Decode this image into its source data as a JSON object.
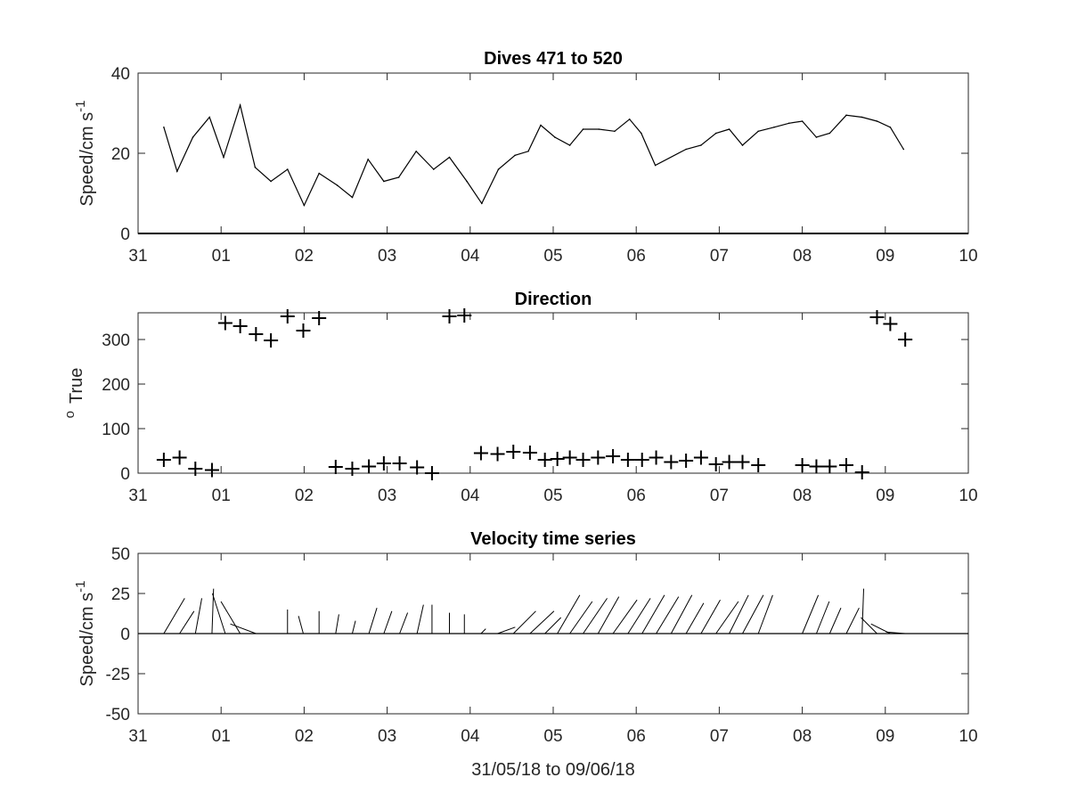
{
  "xlabel": "31/05/18 to 09/06/18",
  "chart_data": [
    {
      "type": "line",
      "title": "Dives 471 to 520",
      "ylabel_main": "Speed/cm s",
      "ylabel_exp": "-1",
      "xlim": [
        0,
        10
      ],
      "ylim": [
        0,
        40
      ],
      "xticks": [
        0,
        1,
        2,
        3,
        4,
        5,
        6,
        7,
        8,
        9,
        10
      ],
      "xtick_labels": [
        "31",
        "01",
        "02",
        "03",
        "04",
        "05",
        "06",
        "07",
        "08",
        "09",
        "10"
      ],
      "yticks": [
        0,
        20,
        40
      ],
      "ytick_labels": [
        "0",
        "20",
        "40"
      ],
      "color": "#000000",
      "x": [
        0.31,
        0.47,
        0.66,
        0.86,
        1.03,
        1.23,
        1.41,
        1.6,
        1.8,
        2.0,
        2.18,
        2.4,
        2.58,
        2.77,
        2.96,
        3.14,
        3.35,
        3.56,
        3.75,
        3.96,
        4.14,
        4.34,
        4.54,
        4.7,
        4.85,
        5.02,
        5.2,
        5.36,
        5.55,
        5.74,
        5.92,
        6.06,
        6.23,
        6.6,
        6.78,
        6.96,
        7.12,
        7.28,
        7.47,
        7.66,
        7.84,
        8.0,
        8.17,
        8.33,
        8.53,
        8.72,
        8.9,
        9.06,
        9.22
      ],
      "y": [
        26.5,
        15.5,
        24,
        29,
        19,
        32,
        16.5,
        13,
        16,
        7,
        15,
        12,
        9,
        18.5,
        13,
        14,
        20.5,
        16,
        19,
        13,
        7.5,
        16,
        19.5,
        20.5,
        27,
        24,
        22,
        26,
        26,
        25.5,
        28.5,
        25,
        17,
        21,
        22,
        25,
        26,
        22,
        25.5,
        26.5,
        27.5,
        28,
        24,
        25,
        29.5,
        29,
        28,
        26.5,
        21
      ]
    },
    {
      "type": "scatter",
      "title": "Direction",
      "ylabel_main": "True",
      "ylabel_sup": "o",
      "xlim": [
        0,
        10
      ],
      "ylim": [
        0,
        360
      ],
      "xticks": [
        0,
        1,
        2,
        3,
        4,
        5,
        6,
        7,
        8,
        9,
        10
      ],
      "xtick_labels": [
        "31",
        "01",
        "02",
        "03",
        "04",
        "05",
        "06",
        "07",
        "08",
        "09",
        "10"
      ],
      "yticks": [
        0,
        100,
        200,
        300
      ],
      "ytick_labels": [
        "0",
        "100",
        "200",
        "300"
      ],
      "marker": "+",
      "color": "#000000",
      "x": [
        0.31,
        0.5,
        0.69,
        0.89,
        1.05,
        1.23,
        1.42,
        1.6,
        1.8,
        1.99,
        2.18,
        2.38,
        2.58,
        2.78,
        2.96,
        3.15,
        3.36,
        3.54,
        3.75,
        3.93,
        4.13,
        4.33,
        4.52,
        4.72,
        4.9,
        5.05,
        5.2,
        5.36,
        5.54,
        5.72,
        5.9,
        6.07,
        6.24,
        6.42,
        6.6,
        6.78,
        6.96,
        7.12,
        7.28,
        7.47,
        8.0,
        8.17,
        8.33,
        8.53,
        8.72,
        8.9,
        9.06,
        9.24
      ],
      "y": [
        30,
        35,
        10,
        7,
        337,
        330,
        312,
        298,
        352,
        320,
        348,
        14,
        10,
        15,
        22,
        22,
        13,
        0,
        352,
        354,
        45,
        43,
        48,
        46,
        30,
        32,
        35,
        30,
        35,
        38,
        30,
        30,
        35,
        25,
        28,
        35,
        20,
        25,
        25,
        18,
        18,
        15,
        15,
        18,
        2,
        350,
        335,
        300
      ]
    },
    {
      "type": "vector",
      "title": "Velocity time series",
      "ylabel_main": "Speed/cm s",
      "ylabel_exp": "-1",
      "xlim": [
        0,
        10
      ],
      "ylim": [
        -50,
        50
      ],
      "xticks": [
        0,
        1,
        2,
        3,
        4,
        5,
        6,
        7,
        8,
        9,
        10
      ],
      "xtick_labels": [
        "31",
        "01",
        "02",
        "03",
        "04",
        "05",
        "06",
        "07",
        "08",
        "09",
        "10"
      ],
      "yticks": [
        -50,
        -25,
        0,
        25,
        50
      ],
      "ytick_labels": [
        "-50",
        "-25",
        "0",
        "25",
        "50"
      ],
      "baseline": 0,
      "color": "#000000",
      "x": [
        0.31,
        0.5,
        0.69,
        0.89,
        1.05,
        1.23,
        1.42,
        1.8,
        1.99,
        2.18,
        2.38,
        2.58,
        2.78,
        2.96,
        3.15,
        3.36,
        3.54,
        3.75,
        3.93,
        4.13,
        4.33,
        4.52,
        4.72,
        4.9,
        5.05,
        5.2,
        5.36,
        5.54,
        5.72,
        5.9,
        6.07,
        6.24,
        6.42,
        6.6,
        6.78,
        6.96,
        7.12,
        7.28,
        7.47,
        8.0,
        8.17,
        8.33,
        8.53,
        8.72,
        8.9,
        9.06,
        9.24
      ],
      "u": [
        13,
        9,
        4,
        1,
        -8,
        -12,
        -16,
        0,
        -3,
        0,
        2,
        2,
        5,
        5,
        5,
        4,
        0,
        0,
        0,
        3,
        11,
        14,
        15,
        10,
        14,
        14,
        15,
        13,
        15,
        14,
        14,
        14,
        13,
        11,
        12,
        14,
        12,
        13,
        9,
        10,
        8,
        7,
        8,
        1,
        -10,
        -12,
        -12
      ],
      "v": [
        22,
        14,
        22,
        28,
        25,
        20,
        6,
        15,
        11,
        14,
        12,
        8,
        16,
        14,
        13,
        18,
        18,
        13,
        12,
        3,
        4,
        14,
        14,
        10,
        24,
        20,
        22,
        23,
        21,
        22,
        24,
        23,
        24,
        19,
        21,
        20,
        24,
        24,
        24,
        24,
        20,
        16,
        16,
        28,
        10,
        6,
        1
      ]
    }
  ]
}
